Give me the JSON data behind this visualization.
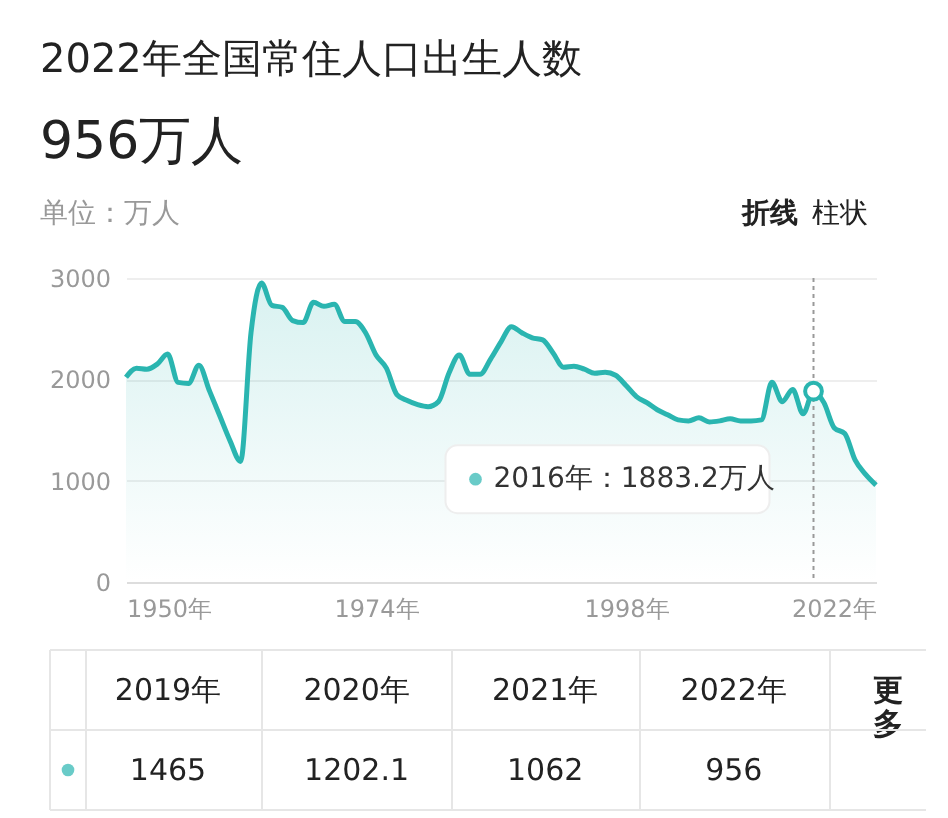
{
  "chart_data": {
    "type": "area",
    "title": "2022年全国常住人口出生人数",
    "subtitle": "956万人",
    "x": [
      1950,
      1951,
      1952,
      1953,
      1954,
      1955,
      1956,
      1957,
      1958,
      1959,
      1960,
      1961,
      1962,
      1963,
      1964,
      1965,
      1966,
      1967,
      1968,
      1969,
      1970,
      1971,
      1972,
      1973,
      1974,
      1975,
      1976,
      1977,
      1978,
      1979,
      1980,
      1981,
      1982,
      1983,
      1984,
      1985,
      1986,
      1987,
      1988,
      1989,
      1990,
      1991,
      1992,
      1993,
      1994,
      1995,
      1996,
      1997,
      1998,
      1999,
      2000,
      2001,
      2002,
      2003,
      2004,
      2005,
      2006,
      2007,
      2008,
      2009,
      2010,
      2011,
      2012,
      2013,
      2014,
      2015,
      2016,
      2017,
      2018,
      2019,
      2020,
      2021,
      2022
    ],
    "series": [
      {
        "color": "#2ab5b0",
        "values": [
          2020,
          2110,
          2100,
          2150,
          2250,
          1970,
          1960,
          2140,
          1890,
          1640,
          1390,
          1190,
          2460,
          2950,
          2730,
          2710,
          2580,
          2560,
          2760,
          2720,
          2740,
          2570,
          2570,
          2460,
          2240,
          2110,
          1850,
          1790,
          1750,
          1730,
          1780,
          2060,
          2240,
          2050,
          2050,
          2200,
          2370,
          2520,
          2460,
          2410,
          2390,
          2260,
          2120,
          2130,
          2100,
          2060,
          2070,
          2040,
          1940,
          1830,
          1770,
          1700,
          1650,
          1600,
          1590,
          1620,
          1580,
          1590,
          1610,
          1590,
          1590,
          1600,
          1970,
          1780,
          1900,
          1660,
          1883.2,
          1770,
          1520,
          1465,
          1202.1,
          1062,
          956
        ]
      }
    ],
    "value_labels": [
      null,
      null,
      null,
      null,
      null,
      null,
      null,
      null,
      null,
      null,
      null,
      null,
      null,
      null,
      null,
      null,
      null,
      null,
      null,
      null,
      null,
      null,
      null,
      null,
      null,
      null,
      null,
      null,
      null,
      null,
      null,
      null,
      null,
      null,
      null,
      null,
      null,
      null,
      null,
      null,
      null,
      null,
      null,
      null,
      null,
      null,
      null,
      null,
      null,
      null,
      null,
      null,
      null,
      null,
      null,
      null,
      null,
      null,
      null,
      null,
      null,
      null,
      null,
      null,
      null,
      null,
      null,
      null,
      null,
      "1465",
      "1202.1",
      "1062",
      "956"
    ],
    "xlim": [
      1950,
      2022
    ],
    "xticks": [
      {
        "value": 1950,
        "label": "1950年"
      },
      {
        "value": 1974,
        "label": "1974年"
      },
      {
        "value": 1998,
        "label": "1998年"
      },
      {
        "value": 2022,
        "label": "2022年"
      }
    ],
    "ylim": [
      0,
      3000
    ],
    "yticks": [
      0,
      1000,
      2000,
      3000
    ],
    "grid": "y",
    "ref_lines": [
      {
        "axis": "x",
        "value": 2016,
        "color": "#999999",
        "line_style": "dotted"
      }
    ],
    "annotations": [
      "单位：万人",
      "2019年",
      "2020年",
      "2021年",
      "2022年",
      "折线",
      "柱状",
      "更多",
      {
        "text": "2016年：1883.2万人",
        "x": 2016,
        "y": 1883.2
      }
    ]
  }
}
